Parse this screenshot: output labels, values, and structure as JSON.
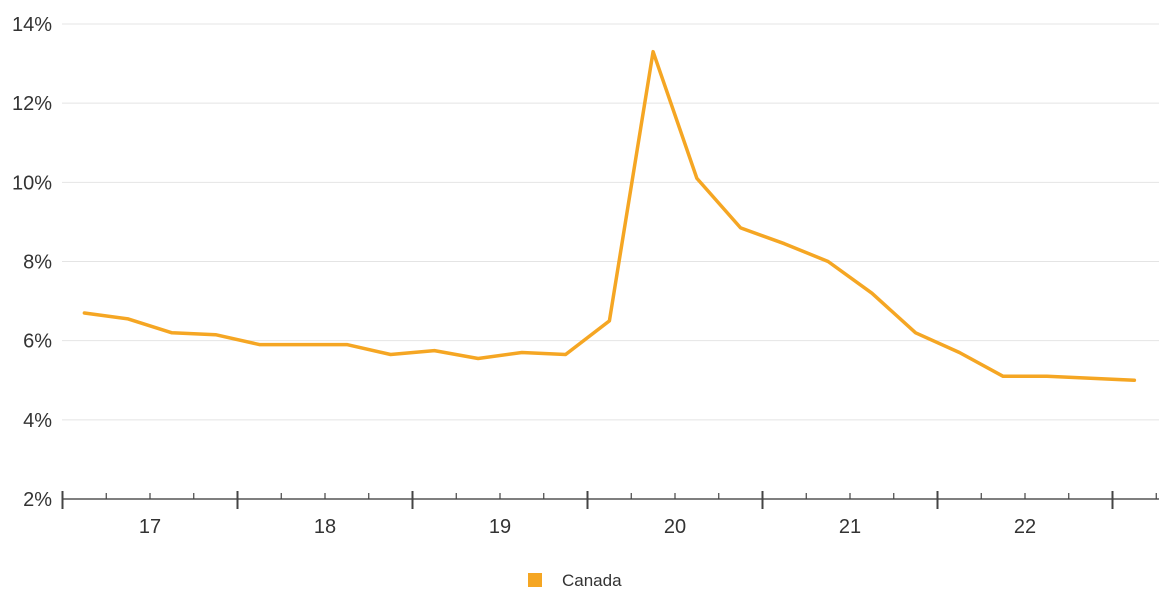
{
  "chart_data": {
    "type": "line",
    "title": "",
    "xlabel": "",
    "ylabel": "",
    "y_tick_labels": [
      "2%",
      "4%",
      "6%",
      "8%",
      "10%",
      "12%",
      "14%"
    ],
    "y_ticks": [
      2,
      4,
      6,
      8,
      10,
      12,
      14
    ],
    "ylim": [
      2,
      14
    ],
    "x_tick_labels": [
      "17",
      "18",
      "19",
      "20",
      "21",
      "22"
    ],
    "x_tick_values": [
      2017,
      2018,
      2019,
      2020,
      2021,
      2022
    ],
    "xlim": [
      2016.5,
      2022.75
    ],
    "grid": true,
    "legend_position": "bottom-center",
    "series": [
      {
        "name": "Canada",
        "color": "#F5A623",
        "x": [
          2016.625,
          2016.875,
          2017.125,
          2017.375,
          2017.625,
          2017.875,
          2018.125,
          2018.375,
          2018.625,
          2018.875,
          2019.125,
          2019.375,
          2019.625,
          2019.875,
          2020.125,
          2020.375,
          2020.625,
          2020.875,
          2021.125,
          2021.375,
          2021.625,
          2021.875,
          2022.125,
          2022.375,
          2022.625
        ],
        "values": [
          6.7,
          6.55,
          6.2,
          6.15,
          5.9,
          5.9,
          5.9,
          5.65,
          5.75,
          5.55,
          5.7,
          5.65,
          6.5,
          13.3,
          10.1,
          8.85,
          8.45,
          8.0,
          7.2,
          6.2,
          5.7,
          5.1,
          5.1,
          5.05,
          5.0
        ]
      }
    ]
  }
}
